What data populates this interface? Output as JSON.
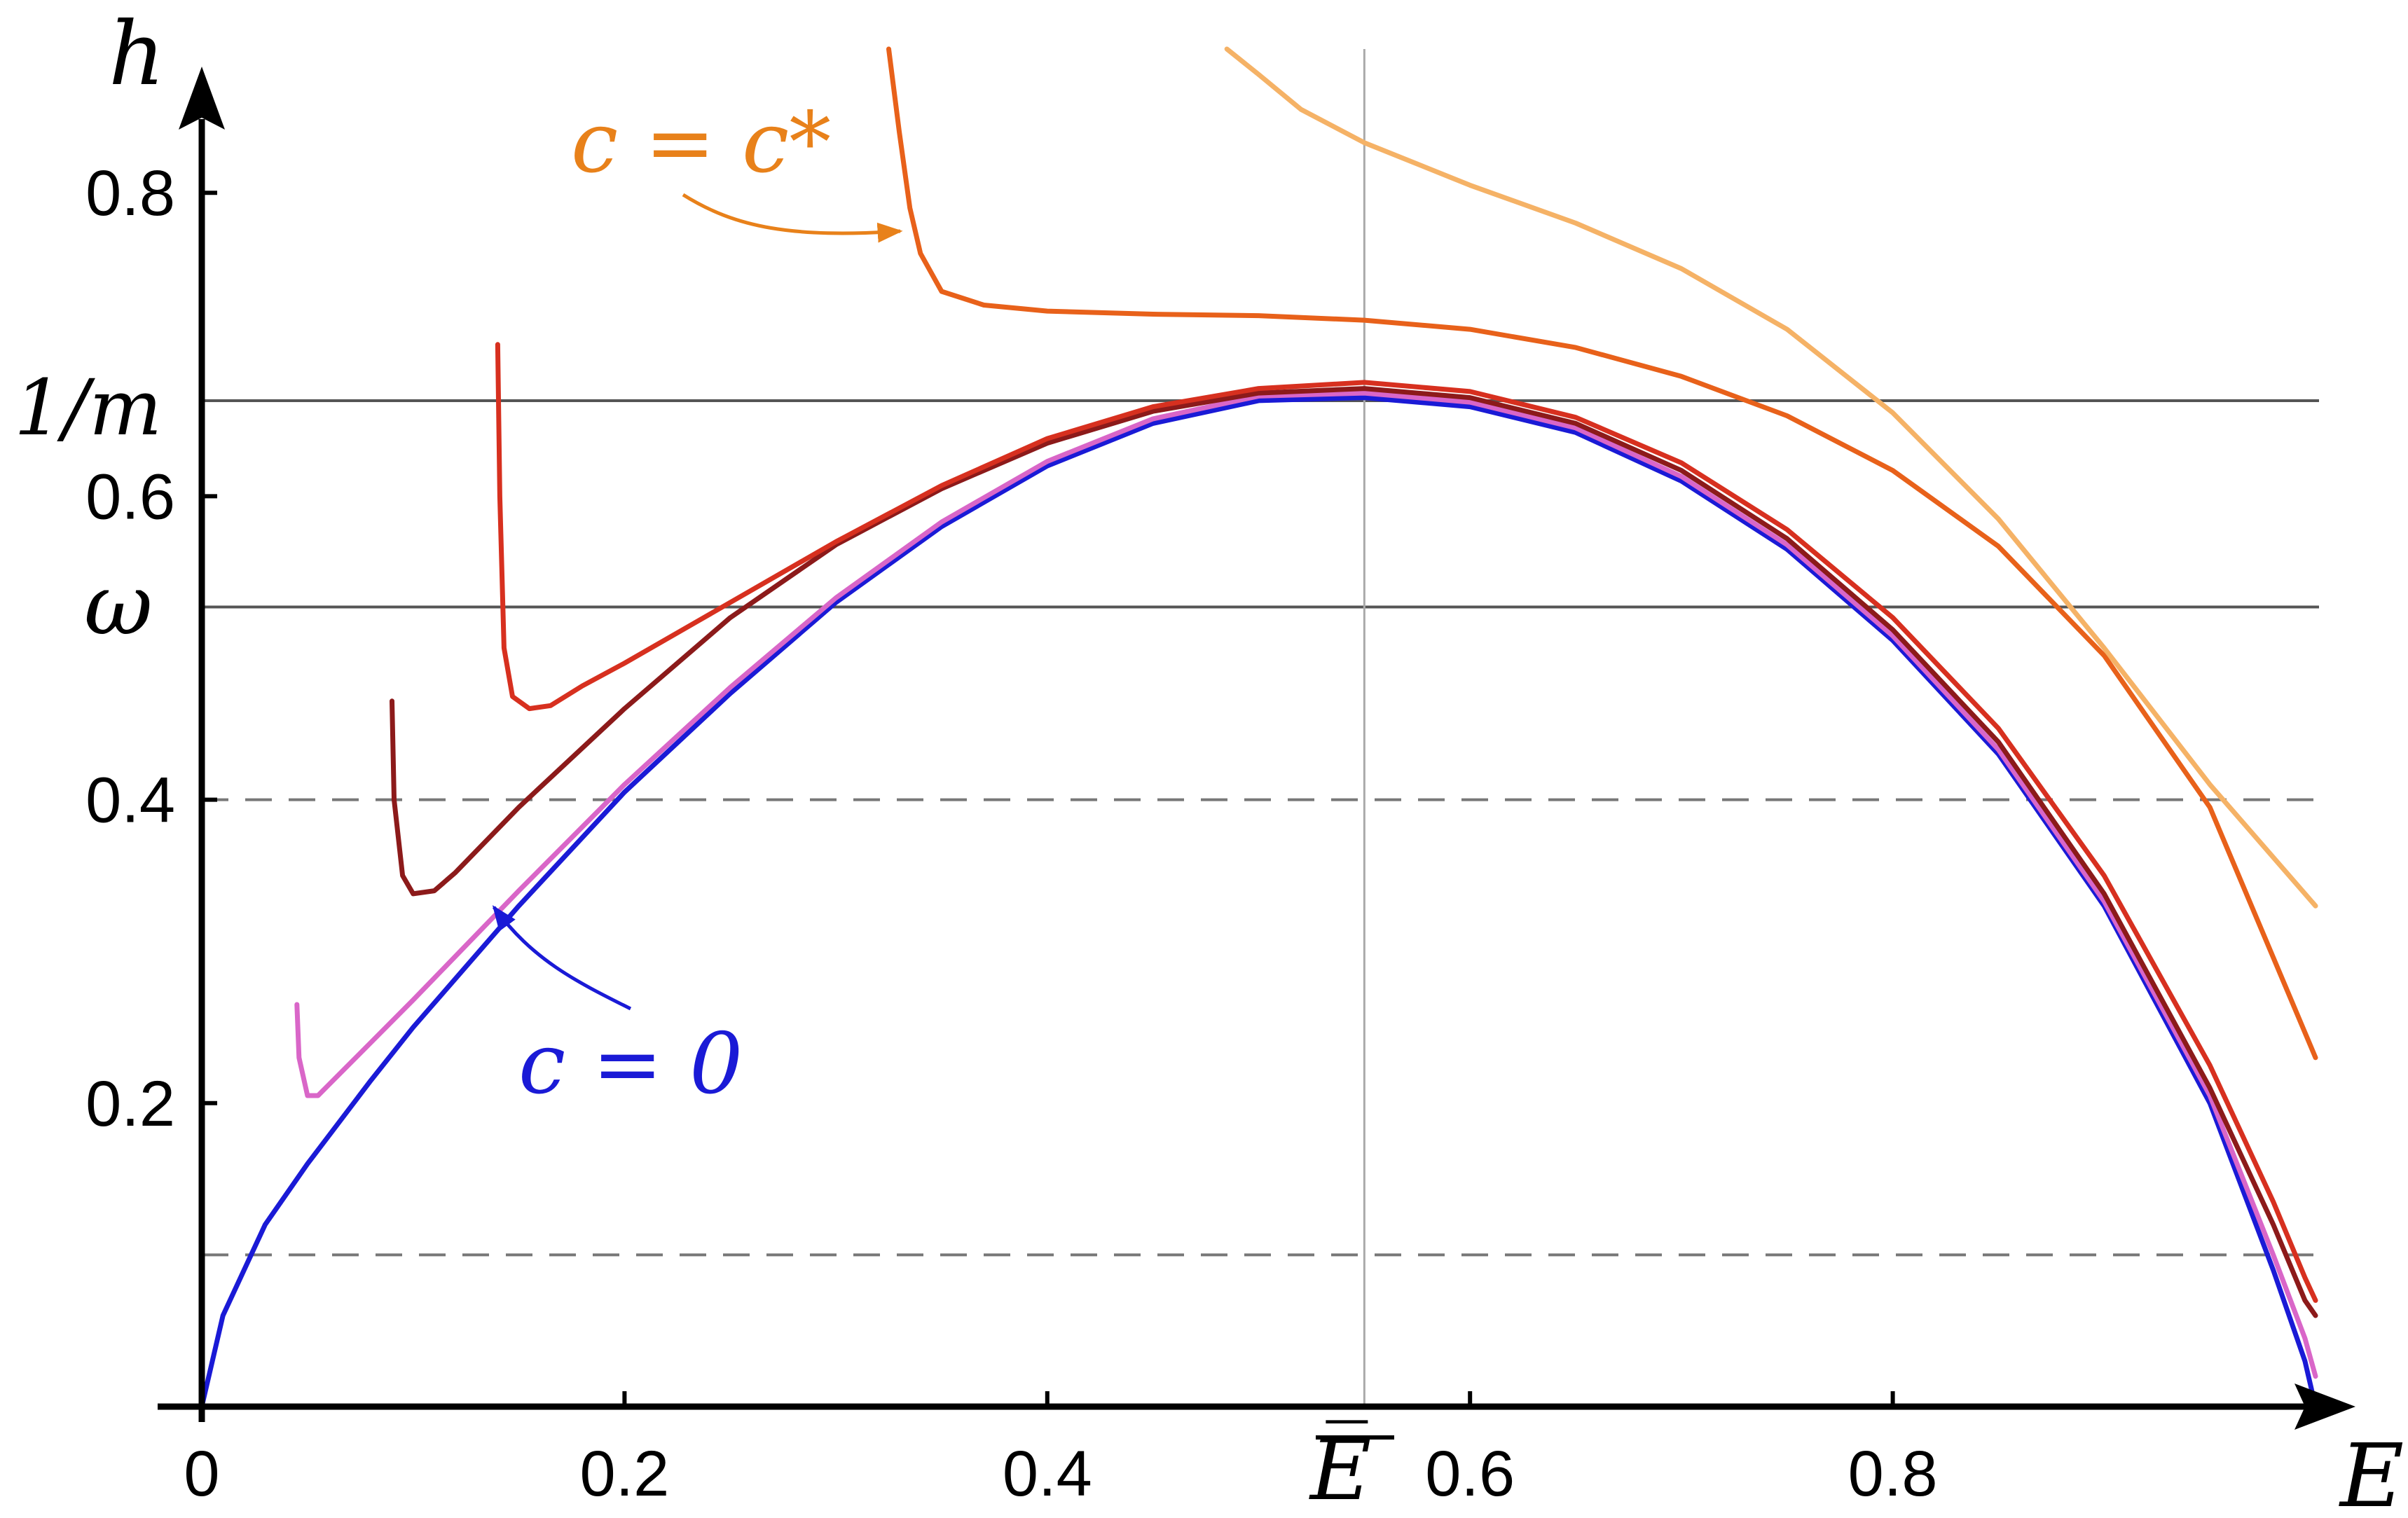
{
  "chart_data": {
    "type": "line",
    "title": "",
    "xlabel": "E",
    "ylabel": "h",
    "xlim": [
      0,
      1.0
    ],
    "ylim": [
      0,
      0.85
    ],
    "x_ticks": [
      {
        "value": 0,
        "label": "0"
      },
      {
        "value": 0.2,
        "label": "0.2"
      },
      {
        "value": 0.4,
        "label": "0.4"
      },
      {
        "value": 0.6,
        "label": "0.6"
      },
      {
        "value": 0.8,
        "label": "0.8"
      }
    ],
    "y_ticks": [
      {
        "value": 0.2,
        "label": "0.2"
      },
      {
        "value": 0.4,
        "label": "0.4"
      },
      {
        "value": 0.6,
        "label": "0.6"
      },
      {
        "value": 0.8,
        "label": "0.8"
      }
    ],
    "special_y_labels": [
      {
        "value": 0.663,
        "label": "1/m"
      },
      {
        "value": 0.527,
        "label": "ω"
      }
    ],
    "special_x_labels": [
      {
        "value": 0.55,
        "label": "E̅"
      }
    ],
    "reference_lines": [
      {
        "orientation": "horizontal",
        "value": 0.663,
        "style": "solid",
        "color": "#555555"
      },
      {
        "orientation": "horizontal",
        "value": 0.527,
        "style": "solid",
        "color": "#555555"
      },
      {
        "orientation": "horizontal",
        "value": 0.4,
        "style": "dashed",
        "color": "#777777"
      },
      {
        "orientation": "horizontal",
        "value": 0.1,
        "style": "dashed",
        "color": "#777777"
      },
      {
        "orientation": "vertical",
        "value": 0.55,
        "style": "solid",
        "color": "#aaaaaa"
      }
    ],
    "series": [
      {
        "color": "#1a1ad6",
        "x": [
          0.0,
          0.01,
          0.03,
          0.05,
          0.08,
          0.1,
          0.15,
          0.2,
          0.25,
          0.3,
          0.35,
          0.4,
          0.45,
          0.5,
          0.55,
          0.6,
          0.65,
          0.7,
          0.75,
          0.8,
          0.85,
          0.9,
          0.95,
          0.98,
          0.995,
          1.0
        ],
        "y": [
          0.0,
          0.06,
          0.12,
          0.16,
          0.215,
          0.25,
          0.33,
          0.405,
          0.47,
          0.53,
          0.58,
          0.62,
          0.648,
          0.663,
          0.665,
          0.659,
          0.642,
          0.61,
          0.565,
          0.505,
          0.43,
          0.33,
          0.2,
          0.09,
          0.03,
          0.0
        ]
      },
      {
        "color": "#d966c8",
        "x": [
          0.045,
          0.046,
          0.05,
          0.055,
          0.06,
          0.08,
          0.1,
          0.15,
          0.2,
          0.25,
          0.3,
          0.35,
          0.4,
          0.45,
          0.5,
          0.55,
          0.6,
          0.65,
          0.7,
          0.75,
          0.8,
          0.85,
          0.9,
          0.95,
          0.98,
          0.995,
          1.0
        ],
        "y": [
          0.265,
          0.23,
          0.205,
          0.205,
          0.212,
          0.24,
          0.268,
          0.34,
          0.41,
          0.474,
          0.533,
          0.583,
          0.623,
          0.651,
          0.666,
          0.668,
          0.662,
          0.645,
          0.613,
          0.568,
          0.508,
          0.433,
          0.333,
          0.205,
          0.1,
          0.045,
          0.02
        ]
      },
      {
        "color": "#8c1a1a",
        "x": [
          0.09,
          0.091,
          0.095,
          0.1,
          0.11,
          0.12,
          0.15,
          0.2,
          0.25,
          0.3,
          0.35,
          0.4,
          0.45,
          0.5,
          0.55,
          0.6,
          0.65,
          0.7,
          0.75,
          0.8,
          0.85,
          0.9,
          0.95,
          0.98,
          0.995,
          1.0
        ],
        "y": [
          0.465,
          0.4,
          0.35,
          0.338,
          0.34,
          0.352,
          0.395,
          0.46,
          0.52,
          0.568,
          0.605,
          0.635,
          0.656,
          0.668,
          0.671,
          0.665,
          0.648,
          0.617,
          0.572,
          0.512,
          0.438,
          0.338,
          0.21,
          0.12,
          0.07,
          0.06
        ]
      },
      {
        "color": "#d7301f",
        "x": [
          0.14,
          0.141,
          0.143,
          0.147,
          0.155,
          0.165,
          0.18,
          0.2,
          0.25,
          0.3,
          0.35,
          0.4,
          0.45,
          0.5,
          0.55,
          0.6,
          0.65,
          0.7,
          0.75,
          0.8,
          0.85,
          0.9,
          0.95,
          0.98,
          0.995,
          1.0
        ],
        "y": [
          0.7,
          0.6,
          0.5,
          0.468,
          0.46,
          0.462,
          0.475,
          0.49,
          0.53,
          0.57,
          0.607,
          0.638,
          0.659,
          0.671,
          0.675,
          0.669,
          0.652,
          0.622,
          0.578,
          0.52,
          0.447,
          0.35,
          0.225,
          0.135,
          0.085,
          0.07
        ]
      },
      {
        "color": "#e8611a",
        "x": [
          0.325,
          0.33,
          0.335,
          0.34,
          0.35,
          0.37,
          0.4,
          0.45,
          0.5,
          0.55,
          0.6,
          0.65,
          0.7,
          0.75,
          0.8,
          0.85,
          0.9,
          0.95,
          1.0
        ],
        "y": [
          0.9,
          0.84,
          0.79,
          0.76,
          0.735,
          0.726,
          0.722,
          0.72,
          0.719,
          0.716,
          0.71,
          0.698,
          0.679,
          0.653,
          0.617,
          0.567,
          0.495,
          0.395,
          0.23
        ]
      },
      {
        "color": "#f5b266",
        "x": [
          0.485,
          0.5,
          0.52,
          0.55,
          0.6,
          0.65,
          0.7,
          0.75,
          0.8,
          0.85,
          0.9,
          0.95,
          1.0
        ],
        "y": [
          0.9,
          0.878,
          0.855,
          0.833,
          0.805,
          0.78,
          0.75,
          0.71,
          0.655,
          0.585,
          0.5,
          0.41,
          0.33
        ]
      }
    ],
    "annotations": [
      {
        "text": "c = c*",
        "color": "#e8811a"
      },
      {
        "text": "c = 0",
        "color": "#1a1ad6"
      }
    ]
  }
}
